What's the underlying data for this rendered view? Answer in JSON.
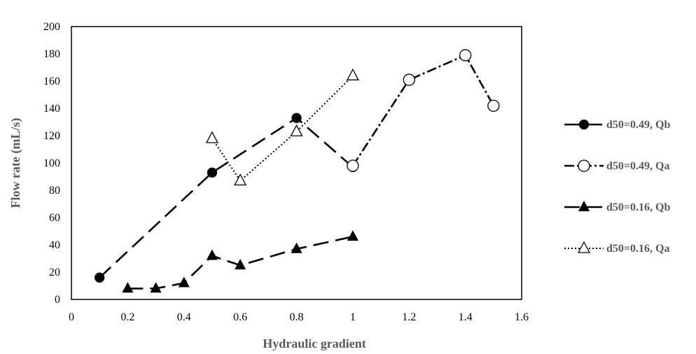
{
  "chart_data": {
    "type": "scatter",
    "xlabel": "Hydraulic gradient",
    "ylabel": "Flow rate (mL/s)",
    "xlim": [
      0,
      1.6
    ],
    "ylim": [
      0,
      200
    ],
    "xticks": [
      "0",
      "0.2",
      "0.4",
      "0.6",
      "0.8",
      "1",
      "1.2",
      "1.4",
      "1.6"
    ],
    "yticks": [
      "0",
      "20",
      "40",
      "60",
      "80",
      "100",
      "120",
      "140",
      "160",
      "180",
      "200"
    ],
    "legend_position": "right",
    "grid": false,
    "series": [
      {
        "name": "d50=0.49, Qb",
        "marker": "circle-filled",
        "line": "long-dash",
        "x": [
          0.1,
          0.5,
          0.8,
          1.0
        ],
        "y": [
          16,
          93,
          133,
          97
        ]
      },
      {
        "name": "d50=0.49, Qa",
        "marker": "circle-open",
        "line": "dash-dot",
        "x": [
          1.0,
          1.2,
          1.4,
          1.5
        ],
        "y": [
          98,
          161,
          179,
          142
        ]
      },
      {
        "name": "d50=0.16, Qb",
        "marker": "triangle-filled",
        "line": "long-dash",
        "x": [
          0.2,
          0.3,
          0.4,
          0.5,
          0.6,
          0.8,
          1.0
        ],
        "y": [
          8,
          8,
          12,
          32,
          25,
          37,
          46
        ]
      },
      {
        "name": "d50=0.16, Qa",
        "marker": "triangle-open",
        "line": "dotted",
        "x": [
          0.5,
          0.6,
          0.8,
          1.0
        ],
        "y": [
          118,
          87,
          123,
          164
        ]
      }
    ]
  }
}
